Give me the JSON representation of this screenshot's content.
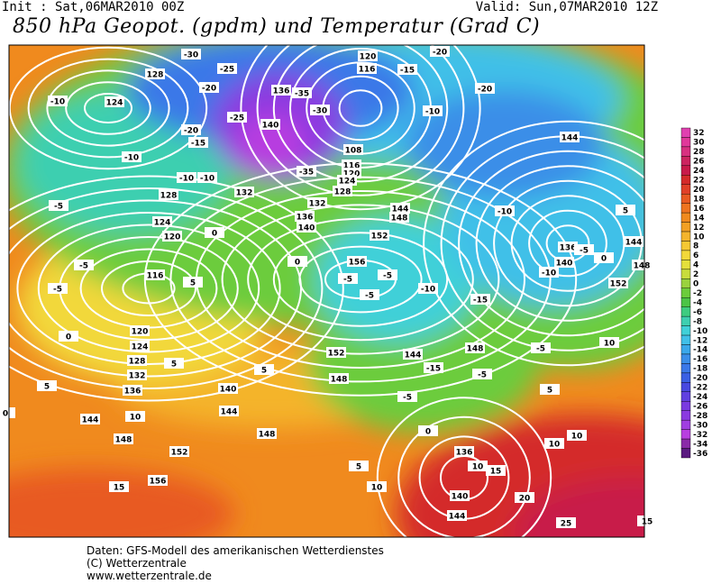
{
  "header": {
    "init": "Init : Sat,06MAR2010 00Z",
    "valid": "Valid: Sun,07MAR2010 12Z",
    "title": "850 hPa Geopot. (gpdm) und Temperatur (Grad C)"
  },
  "colorbar": {
    "ticks": [
      32,
      30,
      28,
      26,
      24,
      22,
      20,
      18,
      16,
      14,
      12,
      10,
      8,
      6,
      4,
      2,
      0,
      -2,
      -4,
      -6,
      -8,
      -10,
      -12,
      -14,
      -16,
      -18,
      -20,
      -22,
      -24,
      -26,
      -28,
      -30,
      -32,
      -34,
      -36
    ],
    "colors": [
      "#e040b0",
      "#e0389a",
      "#d83080",
      "#cc2460",
      "#c81a4a",
      "#d42a2a",
      "#e04028",
      "#e85a22",
      "#ee7420",
      "#f08a1e",
      "#f2a024",
      "#f4b42c",
      "#f5c834",
      "#f2d83a",
      "#e4e03c",
      "#c8dc3c",
      "#9ad23e",
      "#6ccc3c",
      "#4cc446",
      "#3ecc80",
      "#3ecfb0",
      "#40d0d8",
      "#40c0e8",
      "#3aa8ea",
      "#3a8ee8",
      "#3a78e8",
      "#3a60e4",
      "#4848e0",
      "#6040e0",
      "#7a3ae0",
      "#8a3ae0",
      "#a03ee0",
      "#b83ee0",
      "#8a2aa8",
      "#5a1a80"
    ]
  },
  "map": {
    "geopotential_labels": [
      128,
      124,
      136,
      140,
      120,
      116,
      108,
      116,
      120,
      124,
      128,
      132,
      132,
      136,
      140,
      144,
      148,
      152,
      156,
      128,
      124,
      120,
      116,
      120,
      124,
      128,
      132,
      136,
      140,
      144,
      144,
      148,
      148,
      152,
      156,
      152,
      148,
      144,
      148,
      144,
      136,
      140,
      144,
      148,
      152,
      136,
      140,
      144
    ],
    "temperature_labels": [
      -30,
      -25,
      -20,
      -25,
      -20,
      -15,
      -10,
      -10,
      -10,
      -10,
      -5,
      -5,
      -5,
      0,
      5,
      0,
      5,
      5,
      0,
      10,
      5,
      0,
      -5,
      -5,
      -5,
      -10,
      -15,
      -10,
      -15,
      -20,
      -20,
      -10,
      -5,
      -10,
      5,
      0,
      -5,
      -15,
      -5,
      -5,
      0,
      10,
      5,
      10,
      10,
      20,
      25,
      15,
      10,
      15,
      5,
      10,
      15,
      -30,
      -35,
      -35
    ]
  },
  "footer": {
    "lines": [
      "Daten: GFS-Modell des amerikanischen Wetterdienstes",
      "(C) Wetterzentrale",
      "www.wetterzentrale.de"
    ]
  }
}
